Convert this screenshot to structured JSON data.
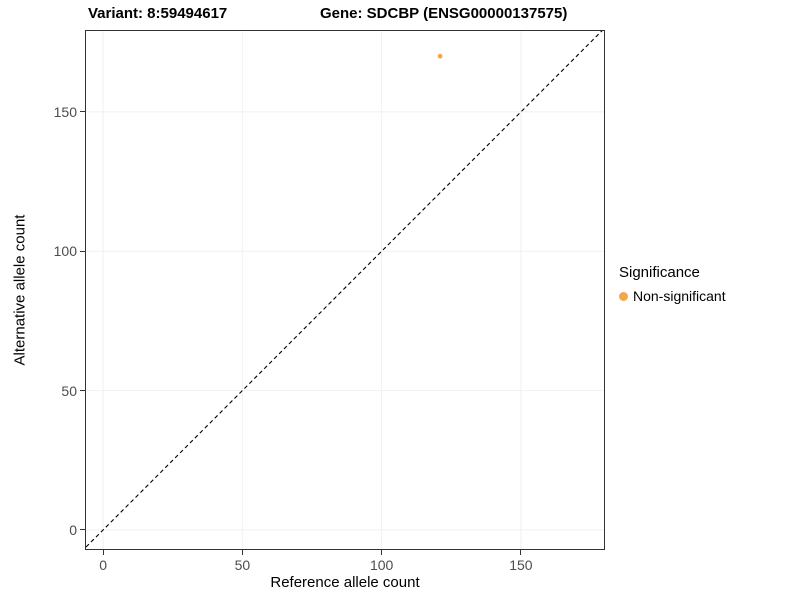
{
  "chart_data": {
    "type": "scatter",
    "titles": {
      "variant": "Variant: 8:59494617",
      "gene": "Gene: SDCBP (ENSG00000137575)"
    },
    "xlabel": "Reference allele count",
    "ylabel": "Alternative allele count",
    "xlim": [
      -6.5,
      180.2
    ],
    "ylim": [
      -7.2,
      179.4
    ],
    "xticks": [
      0,
      50,
      100,
      150
    ],
    "yticks": [
      0,
      50,
      100,
      150
    ],
    "grid": true,
    "identity_line": {
      "style": "dashed",
      "equation": "y = x",
      "from": -15,
      "to": 195
    },
    "points": [
      {
        "x": 121,
        "y": 170,
        "series": "Non-significant"
      }
    ],
    "legend": {
      "title": "Significance",
      "position": "right",
      "entries": [
        {
          "label": "Non-significant",
          "color": "#F5A54B"
        }
      ]
    },
    "colors": {
      "point": "#F5A54B",
      "grid": "#F1F1F1",
      "panel_border": "#333333",
      "axis_text": "#4D4D4D",
      "diagonal": "#000000",
      "background": "#FFFFFF"
    }
  }
}
